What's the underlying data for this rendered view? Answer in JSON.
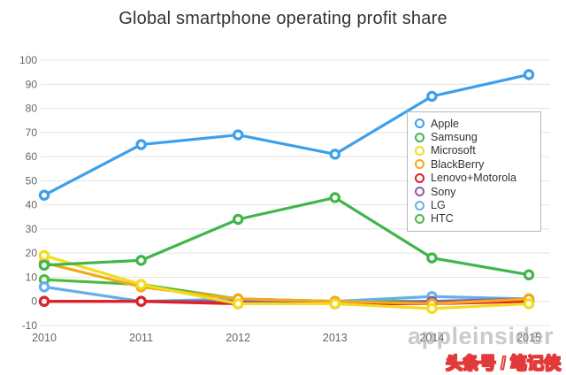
{
  "chart_data": {
    "type": "line",
    "title": "Global smartphone operating profit share",
    "x": [
      "2010",
      "2011",
      "2012",
      "2013",
      "2014",
      "2015"
    ],
    "xlabel": "",
    "ylabel": "",
    "ylim": [
      -10,
      100
    ],
    "ytick_step": 10,
    "grid": true,
    "legend_position": "right",
    "series": [
      {
        "name": "Apple",
        "color": "#3d9fea",
        "values": [
          44,
          65,
          69,
          61,
          85,
          94
        ]
      },
      {
        "name": "Samsung",
        "color": "#3fb54a",
        "values": [
          15,
          17,
          34,
          43,
          18,
          11
        ]
      },
      {
        "name": "Microsoft",
        "color": "#f2dc1e",
        "values": [
          19,
          7,
          -1,
          -1,
          -3,
          -1
        ]
      },
      {
        "name": "BlackBerry",
        "color": "#f5a81c",
        "values": [
          16,
          6,
          1,
          0,
          -1,
          1
        ]
      },
      {
        "name": "Lenovo+Motorola",
        "color": "#df2026",
        "values": [
          0,
          0,
          -1,
          -1,
          -1,
          0
        ]
      },
      {
        "name": "Sony",
        "color": "#8e5ba6",
        "values": [
          0,
          0,
          0,
          -1,
          0,
          1
        ]
      },
      {
        "name": "LG",
        "color": "#64b0ea",
        "values": [
          6,
          0,
          1,
          0,
          2,
          1
        ]
      },
      {
        "name": "HTC",
        "color": "#4dbb3c",
        "values": [
          9,
          7,
          1,
          0,
          0,
          0
        ]
      }
    ]
  },
  "watermark": "appleinsider",
  "stamp": "头条号 / 笔记侠"
}
